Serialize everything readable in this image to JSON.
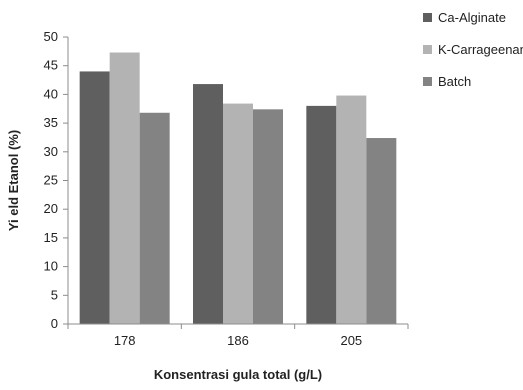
{
  "chart_data": {
    "type": "bar",
    "title": "",
    "xlabel": "Konsentrasi gula total (g/L)",
    "ylabel": "Yi eld Etanol (%)",
    "categories": [
      "178",
      "186",
      "205"
    ],
    "series": [
      {
        "name": "Ca-Alginate",
        "color": "#5f5f5f",
        "values": [
          44.0,
          41.8,
          38.0
        ]
      },
      {
        "name": "K-Carrageenan",
        "color": "#b3b3b3",
        "values": [
          47.3,
          38.4,
          39.8
        ]
      },
      {
        "name": "Batch",
        "color": "#838383",
        "values": [
          36.8,
          37.4,
          32.4
        ]
      }
    ],
    "ylim": [
      0,
      50
    ],
    "yticks": [
      0,
      5,
      10,
      15,
      20,
      25,
      30,
      35,
      40,
      45,
      50
    ],
    "grid": false,
    "legend_position": "top-right"
  }
}
